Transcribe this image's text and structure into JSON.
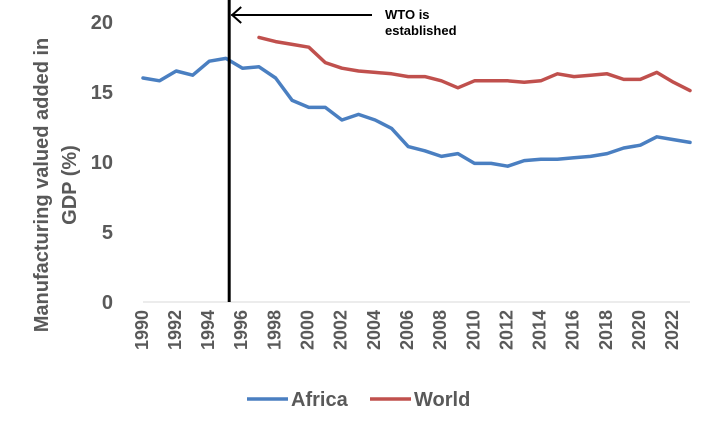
{
  "chart_data": {
    "type": "line",
    "title": "",
    "xlabel": "",
    "ylabel_lines": [
      "Manufacturing valued added in",
      "GDP (%)"
    ],
    "ylim": [
      0,
      20
    ],
    "yticks": [
      0,
      5,
      10,
      15,
      20
    ],
    "xlim": [
      1990,
      2023
    ],
    "xtick_labels": [
      "1990",
      "1992",
      "1994",
      "1996",
      "1998",
      "2000",
      "2002",
      "2004",
      "2006",
      "2008",
      "2010",
      "2012",
      "2014",
      "2016",
      "2018",
      "2020",
      "2022"
    ],
    "grid": false,
    "legend_position": "bottom",
    "series": [
      {
        "name": "Africa",
        "color": "#4a7fc1",
        "x": [
          1990,
          1991,
          1992,
          1993,
          1994,
          1995,
          1996,
          1997,
          1998,
          1999,
          2000,
          2001,
          2002,
          2003,
          2004,
          2005,
          2006,
          2007,
          2008,
          2009,
          2010,
          2011,
          2012,
          2013,
          2014,
          2015,
          2016,
          2017,
          2018,
          2019,
          2020,
          2021,
          2022,
          2023
        ],
        "values": [
          16.0,
          15.8,
          16.5,
          16.2,
          17.2,
          17.4,
          16.7,
          16.8,
          16.0,
          14.4,
          13.9,
          13.9,
          13.0,
          13.4,
          13.0,
          12.4,
          11.1,
          10.8,
          10.4,
          10.6,
          9.9,
          9.9,
          9.7,
          10.1,
          10.2,
          10.2,
          10.3,
          10.4,
          10.6,
          11.0,
          11.2,
          11.8,
          11.6,
          11.4
        ]
      },
      {
        "name": "World",
        "color": "#c0504d",
        "x": [
          1997,
          1998,
          1999,
          2000,
          2001,
          2002,
          2003,
          2004,
          2005,
          2006,
          2007,
          2008,
          2009,
          2010,
          2011,
          2012,
          2013,
          2014,
          2015,
          2016,
          2017,
          2018,
          2019,
          2020,
          2021,
          2022,
          2023
        ],
        "values": [
          18.9,
          18.6,
          18.4,
          18.2,
          17.1,
          16.7,
          16.5,
          16.4,
          16.3,
          16.1,
          16.1,
          15.8,
          15.3,
          15.8,
          15.8,
          15.8,
          15.7,
          15.8,
          16.3,
          16.1,
          16.2,
          16.3,
          15.9,
          15.9,
          16.4,
          15.7,
          15.1
        ]
      }
    ],
    "annotation": {
      "lines": [
        "WTO is",
        "established"
      ],
      "x": 1995.2
    }
  }
}
